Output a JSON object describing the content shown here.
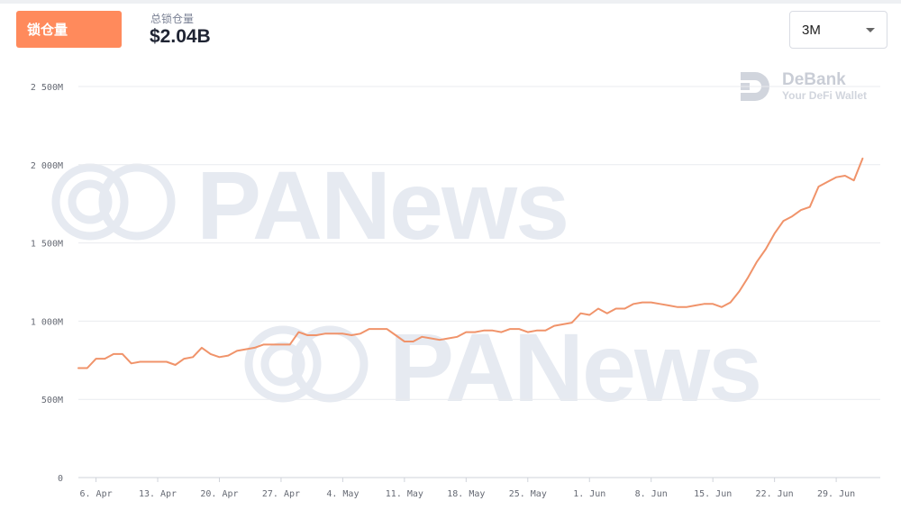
{
  "header": {
    "active_tab_label": "锁仓量",
    "summary_label": "总锁仓量",
    "summary_value": "$2.04B",
    "range_selected": "3M"
  },
  "brand": {
    "name": "DeBank",
    "tagline": "Your DeFi Wallet",
    "logo_icon": "debank-logo-icon"
  },
  "watermark": {
    "text": "PANews",
    "icon": "panews-logo-icon"
  },
  "colors": {
    "accent": "#ff8a5c",
    "line": "#f0936a",
    "grid": "#e9ebef",
    "watermark": "#e6eaf1"
  },
  "chart_data": {
    "type": "line",
    "title": "",
    "xlabel": "",
    "ylabel": "",
    "ylim": [
      0,
      2500
    ],
    "y_ticks": [
      0,
      500,
      1000,
      1500,
      2000,
      2500
    ],
    "y_tick_labels": [
      "0",
      "500M",
      "1 000M",
      "1 500M",
      "2 000M",
      "2 500M"
    ],
    "x_ticks": [
      "2020-04-06",
      "2020-04-13",
      "2020-04-20",
      "2020-04-27",
      "2020-05-04",
      "2020-05-11",
      "2020-05-18",
      "2020-05-25",
      "2020-06-01",
      "2020-06-08",
      "2020-06-15",
      "2020-06-22",
      "2020-06-29"
    ],
    "x_tick_labels": [
      "6. Apr",
      "13. Apr",
      "20. Apr",
      "27. Apr",
      "4. May",
      "11. May",
      "18. May",
      "25. May",
      "1. Jun",
      "8. Jun",
      "15. Jun",
      "22. Jun",
      "29. Jun"
    ],
    "xlim": [
      "2020-04-04",
      "2020-07-04"
    ],
    "grid": true,
    "legend": "none",
    "series": [
      {
        "x": [
          "2020-04-04",
          "2020-04-05",
          "2020-04-06",
          "2020-04-07",
          "2020-04-08",
          "2020-04-09",
          "2020-04-10",
          "2020-04-11",
          "2020-04-12",
          "2020-04-13",
          "2020-04-14",
          "2020-04-15",
          "2020-04-16",
          "2020-04-17",
          "2020-04-18",
          "2020-04-19",
          "2020-04-20",
          "2020-04-21",
          "2020-04-22",
          "2020-04-23",
          "2020-04-24",
          "2020-04-25",
          "2020-04-26",
          "2020-04-27",
          "2020-04-28",
          "2020-04-29",
          "2020-04-30",
          "2020-05-01",
          "2020-05-02",
          "2020-05-03",
          "2020-05-04",
          "2020-05-05",
          "2020-05-06",
          "2020-05-07",
          "2020-05-08",
          "2020-05-09",
          "2020-05-10",
          "2020-05-11",
          "2020-05-12",
          "2020-05-13",
          "2020-05-14",
          "2020-05-15",
          "2020-05-16",
          "2020-05-17",
          "2020-05-18",
          "2020-05-19",
          "2020-05-20",
          "2020-05-21",
          "2020-05-22",
          "2020-05-23",
          "2020-05-24",
          "2020-05-25",
          "2020-05-26",
          "2020-05-27",
          "2020-05-28",
          "2020-05-29",
          "2020-05-30",
          "2020-05-31",
          "2020-06-01",
          "2020-06-02",
          "2020-06-03",
          "2020-06-04",
          "2020-06-05",
          "2020-06-06",
          "2020-06-07",
          "2020-06-08",
          "2020-06-09",
          "2020-06-10",
          "2020-06-11",
          "2020-06-12",
          "2020-06-13",
          "2020-06-14",
          "2020-06-15",
          "2020-06-16",
          "2020-06-17",
          "2020-06-18",
          "2020-06-19",
          "2020-06-20",
          "2020-06-21",
          "2020-06-22",
          "2020-06-23",
          "2020-06-24",
          "2020-06-25",
          "2020-06-26",
          "2020-06-27",
          "2020-06-28",
          "2020-06-29",
          "2020-06-30",
          "2020-07-01",
          "2020-07-02"
        ],
        "values": [
          700,
          700,
          760,
          760,
          790,
          790,
          730,
          740,
          740,
          740,
          740,
          720,
          760,
          770,
          830,
          790,
          770,
          780,
          810,
          820,
          830,
          850,
          850,
          850,
          850,
          930,
          910,
          910,
          920,
          920,
          920,
          910,
          920,
          950,
          950,
          950,
          910,
          870,
          870,
          900,
          890,
          880,
          890,
          900,
          930,
          930,
          940,
          940,
          930,
          950,
          950,
          930,
          940,
          940,
          970,
          980,
          990,
          1050,
          1040,
          1080,
          1050,
          1080,
          1080,
          1110,
          1120,
          1120,
          1110,
          1100,
          1090,
          1090,
          1100,
          1110,
          1110,
          1090,
          1120,
          1190,
          1280,
          1380,
          1460,
          1560,
          1640,
          1670,
          1710,
          1730,
          1860,
          1890,
          1920,
          1930,
          1900,
          2040
        ]
      }
    ]
  }
}
